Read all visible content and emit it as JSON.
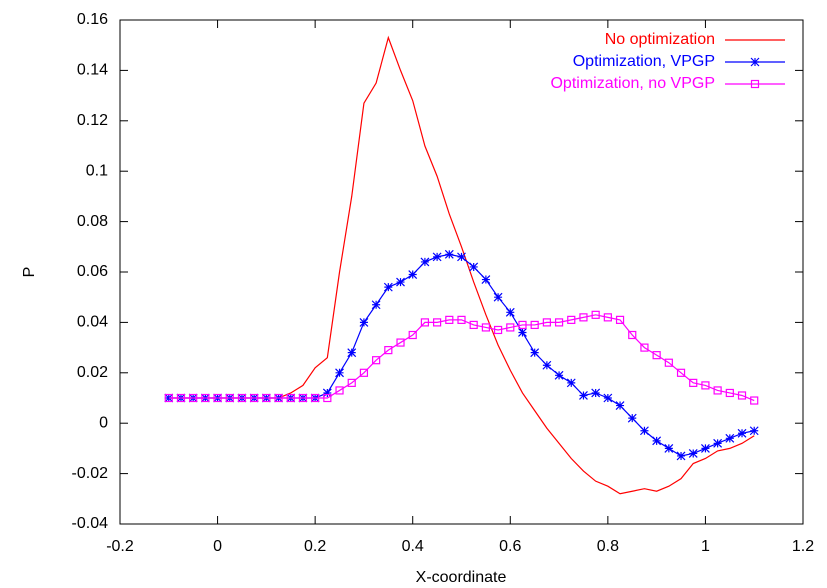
{
  "chart_data": {
    "type": "line",
    "xlabel": "X-coordinate",
    "ylabel": "P",
    "x": [
      -0.1,
      -0.075,
      -0.05,
      -0.025,
      0,
      0.025,
      0.05,
      0.075,
      0.1,
      0.125,
      0.15,
      0.175,
      0.2,
      0.225,
      0.25,
      0.275,
      0.3,
      0.325,
      0.35,
      0.375,
      0.4,
      0.425,
      0.45,
      0.475,
      0.5,
      0.525,
      0.55,
      0.575,
      0.6,
      0.625,
      0.65,
      0.675,
      0.7,
      0.725,
      0.75,
      0.775,
      0.8,
      0.825,
      0.85,
      0.875,
      0.9,
      0.925,
      0.95,
      0.975,
      1.0,
      1.025,
      1.05,
      1.075,
      1.1
    ],
    "series": [
      {
        "name": "No optimization",
        "color": "#ff0000",
        "marker": "none",
        "values": [
          0.01,
          0.01,
          0.01,
          0.01,
          0.01,
          0.01,
          0.01,
          0.01,
          0.01,
          0.01,
          0.012,
          0.015,
          0.022,
          0.026,
          0.06,
          0.09,
          0.127,
          0.135,
          0.153,
          0.14,
          0.128,
          0.11,
          0.098,
          0.083,
          0.07,
          0.056,
          0.043,
          0.031,
          0.021,
          0.012,
          0.005,
          -0.002,
          -0.008,
          -0.014,
          -0.019,
          -0.023,
          -0.025,
          -0.028,
          -0.027,
          -0.026,
          -0.027,
          -0.025,
          -0.022,
          -0.016,
          -0.014,
          -0.011,
          -0.01,
          -0.008,
          -0.005
        ]
      },
      {
        "name": "Optimization, VPGP",
        "color": "#0000ff",
        "marker": "star",
        "values": [
          0.01,
          0.01,
          0.01,
          0.01,
          0.01,
          0.01,
          0.01,
          0.01,
          0.01,
          0.01,
          0.01,
          0.01,
          0.01,
          0.012,
          0.02,
          0.028,
          0.04,
          0.047,
          0.054,
          0.056,
          0.059,
          0.064,
          0.066,
          0.067,
          0.066,
          0.062,
          0.057,
          0.05,
          0.044,
          0.036,
          0.028,
          0.023,
          0.019,
          0.016,
          0.011,
          0.012,
          0.01,
          0.007,
          0.002,
          -0.003,
          -0.007,
          -0.01,
          -0.013,
          -0.012,
          -0.01,
          -0.008,
          -0.006,
          -0.004,
          -0.003
        ]
      },
      {
        "name": "Optimization, no VPGP",
        "color": "#ff00ff",
        "marker": "square",
        "values": [
          0.01,
          0.01,
          0.01,
          0.01,
          0.01,
          0.01,
          0.01,
          0.01,
          0.01,
          0.01,
          0.01,
          0.01,
          0.01,
          0.01,
          0.013,
          0.016,
          0.02,
          0.025,
          0.029,
          0.032,
          0.035,
          0.04,
          0.04,
          0.041,
          0.041,
          0.039,
          0.038,
          0.037,
          0.038,
          0.039,
          0.039,
          0.04,
          0.04,
          0.041,
          0.042,
          0.043,
          0.042,
          0.041,
          0.035,
          0.03,
          0.027,
          0.024,
          0.02,
          0.016,
          0.015,
          0.013,
          0.012,
          0.011,
          0.009
        ]
      }
    ],
    "xlim": [
      -0.2,
      1.2
    ],
    "xticks": [
      -0.2,
      0,
      0.2,
      0.4,
      0.6,
      0.8,
      1,
      1.2
    ],
    "ylim": [
      -0.04,
      0.16
    ],
    "yticks": [
      -0.04,
      -0.02,
      0,
      0.02,
      0.04,
      0.06,
      0.08,
      0.1,
      0.12,
      0.14,
      0.16
    ],
    "grid": false,
    "legend": "top-right"
  }
}
